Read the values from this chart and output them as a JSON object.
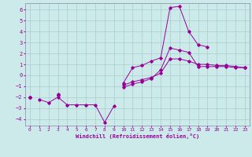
{
  "title": "",
  "xlabel": "Windchill (Refroidissement éolien,°C)",
  "background_color": "#cceaea",
  "grid_color": "#aacccc",
  "line_color": "#990099",
  "spine_color": "#8888aa",
  "xlim": [
    -0.5,
    23.5
  ],
  "ylim": [
    -4.6,
    6.6
  ],
  "xticks": [
    0,
    1,
    2,
    3,
    4,
    5,
    6,
    7,
    8,
    9,
    10,
    11,
    12,
    13,
    14,
    15,
    16,
    17,
    18,
    19,
    20,
    21,
    22,
    23
  ],
  "yticks": [
    -4,
    -3,
    -2,
    -1,
    0,
    1,
    2,
    3,
    4,
    5,
    6
  ],
  "series": [
    [
      null,
      -2.2,
      -2.5,
      -2.0,
      -2.7,
      -2.7,
      -2.7,
      -2.7,
      -4.3,
      -2.8,
      null,
      null,
      null,
      null,
      null,
      null,
      null,
      null,
      null,
      null,
      null,
      null,
      null,
      null
    ],
    [
      -2.0,
      null,
      null,
      -1.8,
      null,
      null,
      null,
      null,
      null,
      null,
      -1.1,
      -0.8,
      -0.6,
      -0.3,
      0.5,
      2.5,
      2.3,
      2.1,
      0.8,
      0.8,
      0.8,
      0.8,
      0.7,
      0.7
    ],
    [
      -2.0,
      null,
      null,
      -1.7,
      null,
      null,
      null,
      null,
      null,
      null,
      -0.7,
      0.7,
      0.9,
      1.3,
      1.6,
      6.2,
      6.3,
      4.0,
      2.8,
      2.6,
      null,
      null,
      null,
      null
    ],
    [
      -2.0,
      null,
      null,
      -1.8,
      null,
      null,
      null,
      null,
      null,
      null,
      -0.9,
      -0.6,
      -0.4,
      -0.2,
      0.2,
      1.5,
      1.5,
      1.3,
      1.0,
      1.0,
      0.9,
      0.9,
      0.8,
      0.7
    ]
  ]
}
